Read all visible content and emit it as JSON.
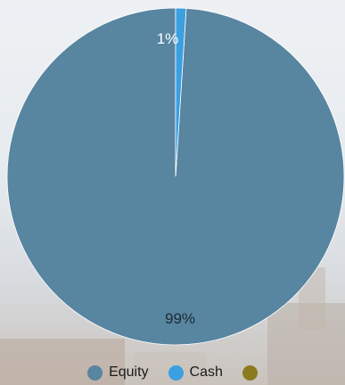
{
  "chart_data": {
    "type": "pie",
    "title": "",
    "slices": [
      {
        "name": "Equity",
        "value": 99,
        "label": "99%",
        "color": "#5885a0"
      },
      {
        "name": "Cash",
        "value": 1,
        "label": "1%",
        "color": "#3b9fe0"
      },
      {
        "name": "",
        "value": 0,
        "label": "",
        "color": "#8c7a1e"
      }
    ],
    "legend_position": "bottom"
  }
}
